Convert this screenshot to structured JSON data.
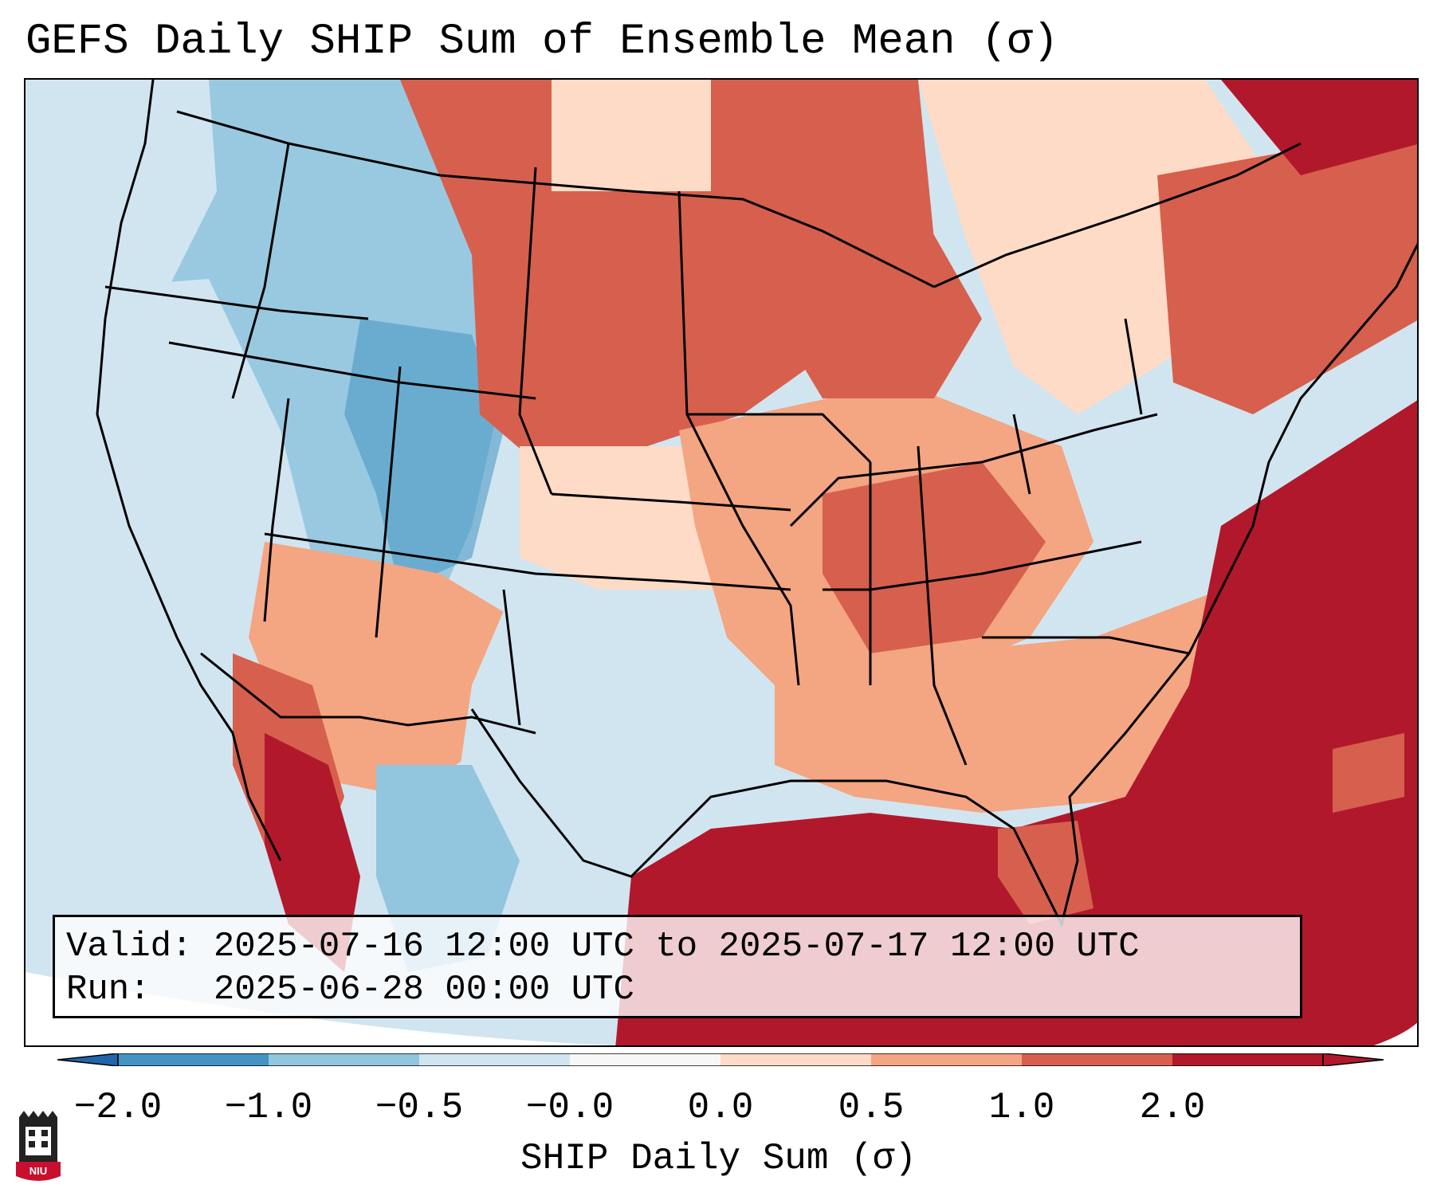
{
  "title": "GEFS Daily SHIP Sum of Ensemble Mean (σ)",
  "info": {
    "valid_label": "Valid:",
    "valid_value": "2025-07-16 12:00 UTC to 2025-07-17 12:00 UTC",
    "run_label": "Run:",
    "run_value": "2025-06-28 00:00 UTC"
  },
  "colorbar": {
    "label": "SHIP Daily Sum (σ)",
    "ticks": [
      "−2.0",
      "−1.0",
      "−0.5",
      "−0.0",
      "0.0",
      "0.5",
      "1.0",
      "2.0"
    ],
    "colors": [
      "#4393c3",
      "#92c5de",
      "#d1e5f0",
      "#f7f7f7",
      "#fddbc7",
      "#f4a582",
      "#d6604d",
      "#b2182b"
    ]
  },
  "logo": {
    "text": "NIU"
  },
  "map_icon": "conus-map-icon"
}
